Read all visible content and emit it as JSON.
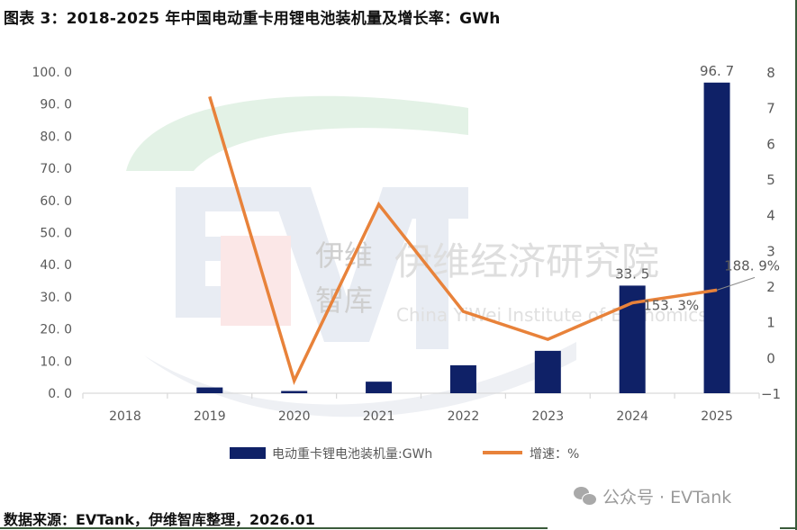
{
  "header": {
    "title": "图表 3：2018-2025 年中国电动重卡用锂电池装机量及增长率：GWh"
  },
  "footer": {
    "source": "数据来源：EVTank，伊维智库整理，2026.01",
    "wechat_label": "公众号 · EVTank",
    "wechat_icon": "wechat-icon"
  },
  "watermark": {
    "logo": "EV",
    "cn_short_1": "伊维",
    "cn_short_2": "智库",
    "cn_full": "伊维经济研究院",
    "en_full": "China YiWei Institute of Economics"
  },
  "colors": {
    "bar": "#0f2167",
    "line": "#e8823a",
    "axis_text": "#595959",
    "gridline": "#d9d9d9"
  },
  "chart_data": {
    "type": "bar",
    "title": "2018-2025 年中国电动重卡用锂电池装机量及增长率：GWh",
    "categories": [
      "2018",
      "2019",
      "2020",
      "2021",
      "2022",
      "2023",
      "2024",
      "2025"
    ],
    "series": [
      {
        "name": "电动重卡锂电池装机量:GWh",
        "type": "bar",
        "axis": "left",
        "values": [
          0.0,
          1.8,
          0.7,
          3.6,
          8.7,
          13.2,
          33.5,
          96.7
        ],
        "data_labels": {
          "2024": "33.5",
          "2025": "96.7"
        }
      },
      {
        "name": "增速：%",
        "type": "line",
        "axis": "right",
        "values": [
          null,
          7.31,
          -0.65,
          4.29,
          1.29,
          0.51,
          1.533,
          1.889
        ],
        "data_labels": {
          "2024": "153.3%",
          "2025": "188.9%"
        }
      }
    ],
    "left_axis": {
      "ylim": [
        0,
        100
      ],
      "ticks": [
        "0.0",
        "10.0",
        "20.0",
        "30.0",
        "40.0",
        "50.0",
        "60.0",
        "70.0",
        "80.0",
        "90.0",
        "100.0"
      ]
    },
    "right_axis": {
      "ylim": [
        -1,
        8
      ],
      "ticks": [
        "-1",
        "0",
        "1",
        "2",
        "3",
        "4",
        "5",
        "6",
        "7",
        "8"
      ]
    },
    "xlabel": "",
    "ylabel": "",
    "grid": false,
    "legend": {
      "position": "bottom",
      "entries": [
        "电动重卡锂电池装机量:GWh",
        "增速：%"
      ]
    }
  }
}
